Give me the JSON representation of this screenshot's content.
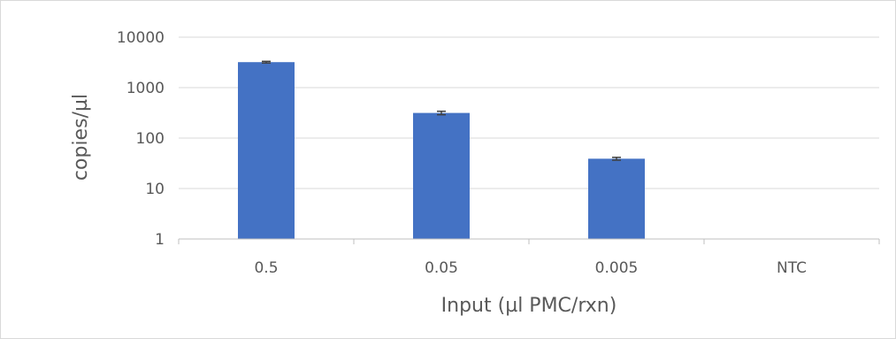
{
  "chart_data": {
    "type": "bar",
    "title": "",
    "xlabel": "Input (µl PMC/rxn)",
    "ylabel": "copies/µl",
    "y_scale": "log",
    "ylim": [
      1,
      10000
    ],
    "y_ticks": [
      "1",
      "10",
      "100",
      "1000",
      "10000"
    ],
    "categories": [
      "0.5",
      "0.05",
      "0.005",
      "NTC"
    ],
    "series": [
      {
        "values": [
          3200,
          315,
          39,
          null
        ],
        "error": [
          120,
          25,
          2.5,
          null
        ],
        "color": "#4472c4"
      }
    ],
    "grid": true,
    "legend": "none"
  }
}
